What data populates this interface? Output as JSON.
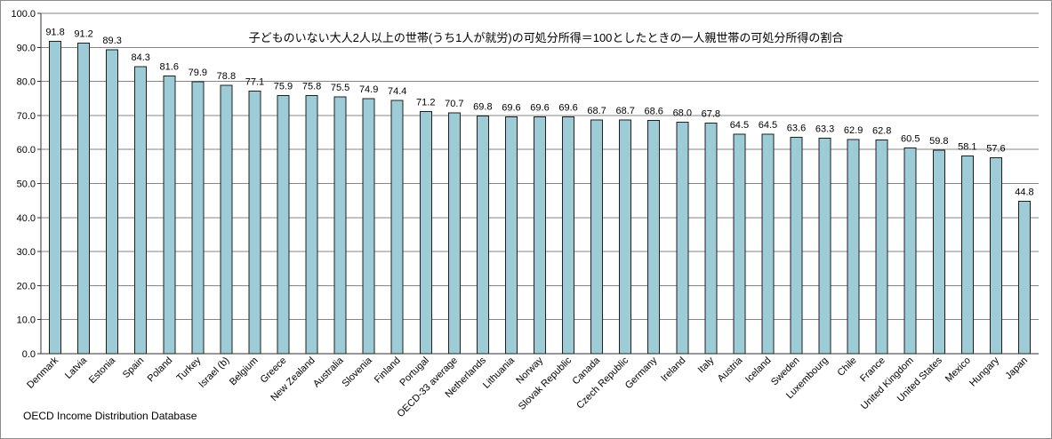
{
  "chart_data": {
    "type": "bar",
    "title": "子どものいない大人2人以上の世帯(うち1人が就労)の可処分所得＝100としたときの一人親世帯の可処分所得の割合",
    "xlabel": "",
    "ylabel": "",
    "ylim": [
      0,
      100
    ],
    "yticks": [
      "0.0",
      "10.0",
      "20.0",
      "30.0",
      "40.0",
      "50.0",
      "60.0",
      "70.0",
      "80.0",
      "90.0",
      "100.0"
    ],
    "grid": true,
    "legend": "none",
    "categories": [
      "Denmark",
      "Latvia",
      "Estonia",
      "Spain",
      "Poland",
      "Turkey",
      "Israel (b)",
      "Belgium",
      "Greece",
      "New Zealand",
      "Australia",
      "Slovenia",
      "Finland",
      "Portugal",
      "OECD-33 average",
      "Netherlands",
      "Lithuania",
      "Norway",
      "Slovak Republic",
      "Canada",
      "Czech Republic",
      "Germany",
      "Ireland",
      "Italy",
      "Austria",
      "Iceland",
      "Sweden",
      "Luxembourg",
      "Chile",
      "France",
      "United Kingdom",
      "United States",
      "Mexico",
      "Hungary",
      "Japan"
    ],
    "values": [
      91.8,
      91.2,
      89.3,
      84.3,
      81.6,
      79.9,
      78.8,
      77.1,
      75.9,
      75.8,
      75.5,
      74.9,
      74.4,
      71.2,
      70.7,
      69.8,
      69.6,
      69.6,
      69.6,
      68.7,
      68.7,
      68.6,
      68.0,
      67.8,
      64.5,
      64.5,
      63.6,
      63.3,
      62.9,
      62.8,
      60.5,
      59.8,
      58.1,
      57.6,
      44.8
    ],
    "data_labels": [
      "91.8",
      "91.2",
      "89.3",
      "84.3",
      "81.6",
      "79.9",
      "78.8",
      "77.1",
      "75.9",
      "75.8",
      "75.5",
      "74.9",
      "74.4",
      "71.2",
      "70.7",
      "69.8",
      "69.6",
      "69.6",
      "69.6",
      "68.7",
      "68.7",
      "68.6",
      "68.0",
      "67.8",
      "64.5",
      "64.5",
      "63.6",
      "63.3",
      "62.9",
      "62.8",
      "60.5",
      "59.8",
      "58.1",
      "57.6",
      "44.8"
    ],
    "colors": {
      "bar_fill": "#9dcbd6",
      "bar_stroke": "#1f1f1f",
      "grid": "#868686"
    },
    "source": "OECD Income Distribution Database"
  }
}
